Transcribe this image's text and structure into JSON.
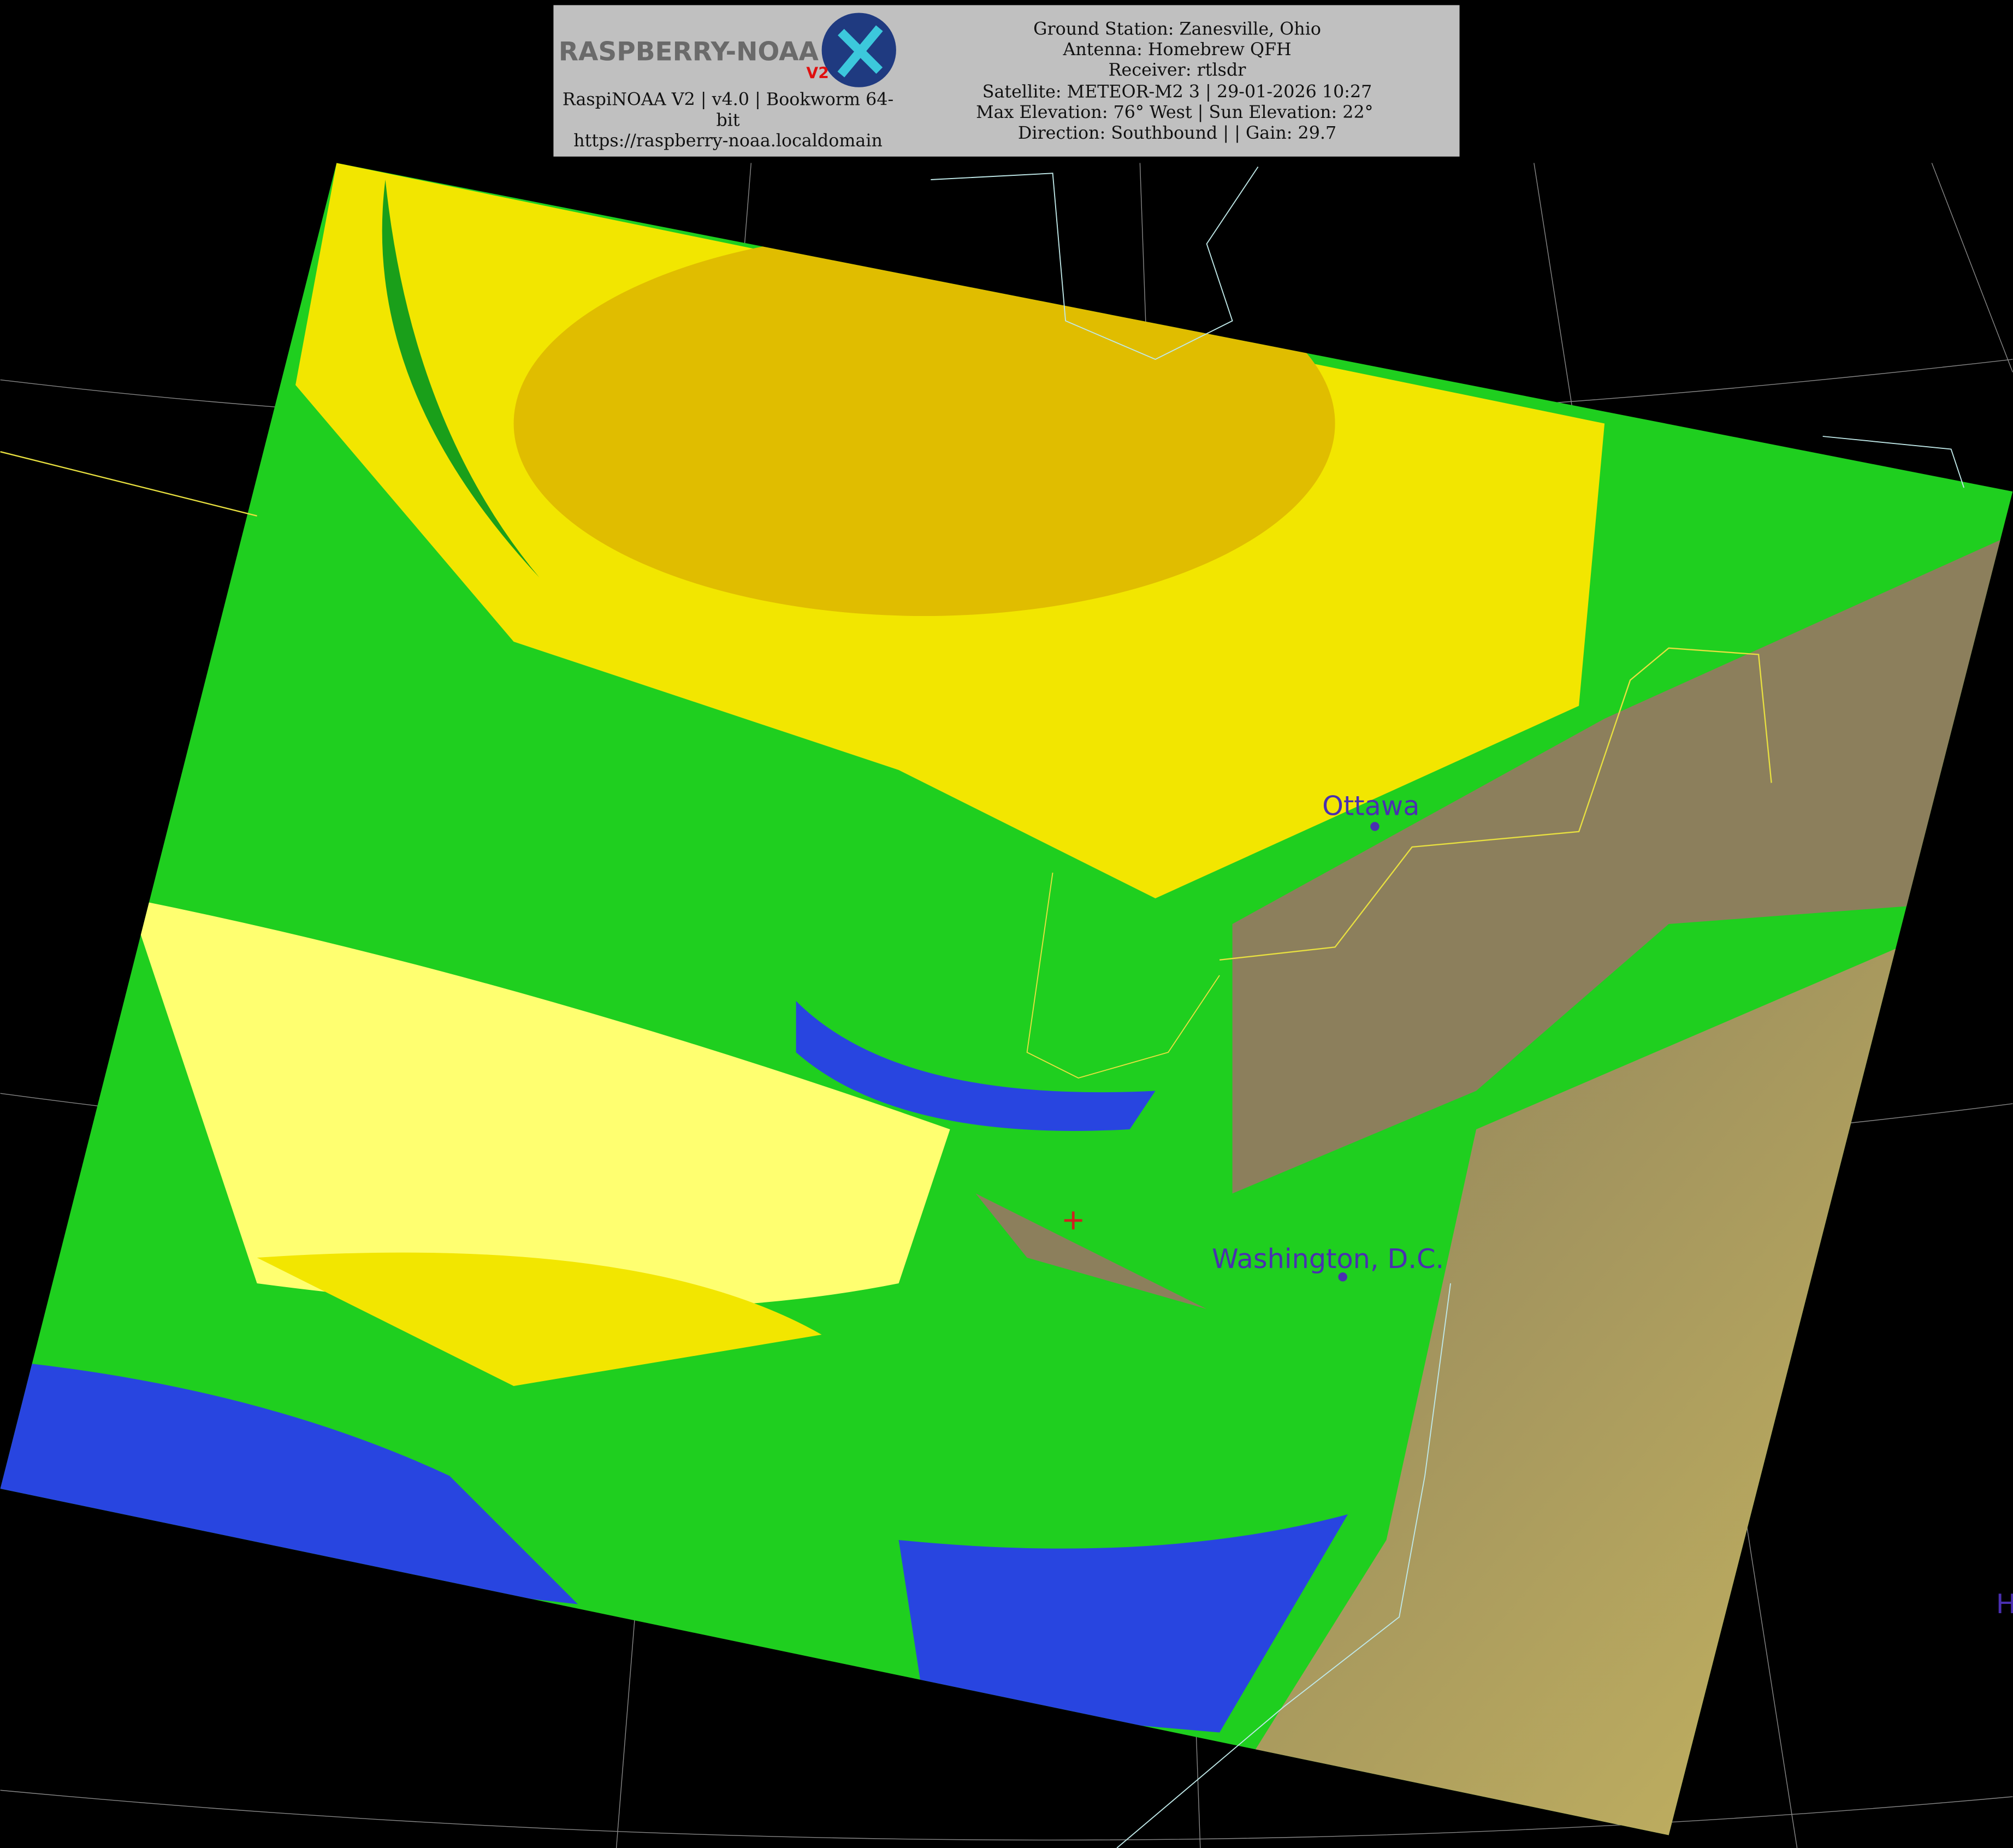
{
  "header": {
    "logo_text": "RASPBERRY-NOAA",
    "logo_badge": "V2",
    "software_line1": "RaspiNOAA V2 | v4.0 | Bookworm 64-",
    "software_line2": "bit",
    "url": "https://raspberry-noaa.localdomain",
    "info_lines": [
      "Ground Station: Zanesville, Ohio",
      "Antenna: Homebrew QFH",
      "Receiver: rtlsdr",
      "Satellite: METEOR-M2 3 | 29-01-2026 10:27",
      "Max Elevation: 76° West | Sun Elevation: 22°",
      "Direction: Southbound | | Gain: 29.7"
    ]
  },
  "map": {
    "cities": [
      {
        "name": "Ottawa"
      },
      {
        "name": "Washington, D.C."
      },
      {
        "name": "H"
      }
    ],
    "colors": {
      "cloud_high": "#f2e600",
      "cloud_cold": "#e0bd00",
      "cloud_mid": "#1fcf1f",
      "cloud_low": "#2845e0",
      "land": "#8c7f5c",
      "ocean": "#4a4a5a",
      "city_label": "#4a2fb0",
      "marker": "#d02020",
      "border": "#e8e040",
      "coastline": "#bfe8e8"
    }
  }
}
